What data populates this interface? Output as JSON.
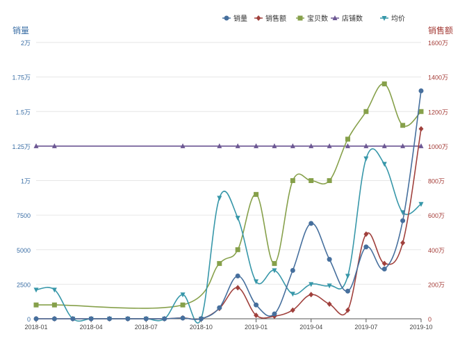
{
  "chart_data": {
    "type": "line",
    "legend_position": "top-right",
    "grid": true,
    "x": [
      "2018-01",
      "2018-02",
      "2018-03",
      "2018-04",
      "2018-05",
      "2018-06",
      "2018-07",
      "2018-08",
      "2018-09",
      "2018-10",
      "2018-11",
      "2018-12",
      "2019-01",
      "2019-02",
      "2019-03",
      "2019-04",
      "2019-05",
      "2019-06",
      "2019-07",
      "2019-08",
      "2019-09",
      "2019-10"
    ],
    "x_ticks": [
      "2018-01",
      "2018-04",
      "2018-07",
      "2018-10",
      "2019-01",
      "2019-04",
      "2019-07",
      "2019-10"
    ],
    "y_left": {
      "label": "销量",
      "range": [
        0,
        20000
      ],
      "ticks": [
        0,
        2500,
        5000,
        7500,
        10000,
        12500,
        15000,
        17500,
        20000
      ],
      "tick_labels": [
        "0",
        "2500",
        "5000",
        "7500",
        "1万",
        "1.25万",
        "1.5万",
        "1.75万",
        "2万"
      ],
      "color": "#3a6ea5"
    },
    "y_right": {
      "label": "销售额",
      "range": [
        0,
        16000000
      ],
      "ticks": [
        0,
        2000000,
        4000000,
        6000000,
        8000000,
        10000000,
        12000000,
        14000000,
        16000000
      ],
      "tick_labels": [
        "0",
        "200万",
        "400万",
        "600万",
        "800万",
        "1000万",
        "1200万",
        "1400万",
        "1600万"
      ],
      "color": "#a33a35"
    },
    "series": [
      {
        "name": "销量",
        "axis": "left",
        "color": "#466f9d",
        "marker": "circle",
        "values": [
          0,
          0,
          0,
          0,
          0,
          0,
          0,
          0,
          50,
          0,
          800,
          3100,
          1000,
          350,
          3500,
          6900,
          4300,
          2000,
          5200,
          3600,
          7100,
          16500
        ]
      },
      {
        "name": "销售额",
        "axis": "right",
        "color": "#a0403c",
        "marker": "diamond",
        "values": [
          0,
          0,
          0,
          0,
          0,
          0,
          0,
          0,
          50000,
          0,
          600000,
          1800000,
          200000,
          150000,
          500000,
          1400000,
          850000,
          500000,
          4900000,
          3200000,
          4400000,
          11000000
        ]
      },
      {
        "name": "宝贝数",
        "axis": "left",
        "color": "#86a04a",
        "marker": "square",
        "values": [
          1000,
          1000,
          null,
          null,
          null,
          null,
          null,
          null,
          1000,
          null,
          4000,
          5000,
          9000,
          4000,
          10000,
          10000,
          10000,
          13000,
          15000,
          17000,
          14000,
          15000
        ]
      },
      {
        "name": "店铺数",
        "axis": "left",
        "color": "#6c5793",
        "marker": "triangle",
        "values": [
          12500,
          12500,
          null,
          null,
          null,
          null,
          null,
          null,
          12500,
          null,
          12500,
          12500,
          12500,
          12500,
          12500,
          12500,
          12500,
          12500,
          12500,
          12500,
          12500,
          12500
        ]
      },
      {
        "name": "均价",
        "axis": "left",
        "color": "#3797a9",
        "marker": "triangle-down",
        "values": [
          2100,
          2100,
          0,
          0,
          0,
          0,
          0,
          0,
          1750,
          0,
          8750,
          7300,
          2700,
          3500,
          1800,
          2500,
          2400,
          3100,
          11600,
          11200,
          7700,
          8300
        ]
      }
    ]
  }
}
